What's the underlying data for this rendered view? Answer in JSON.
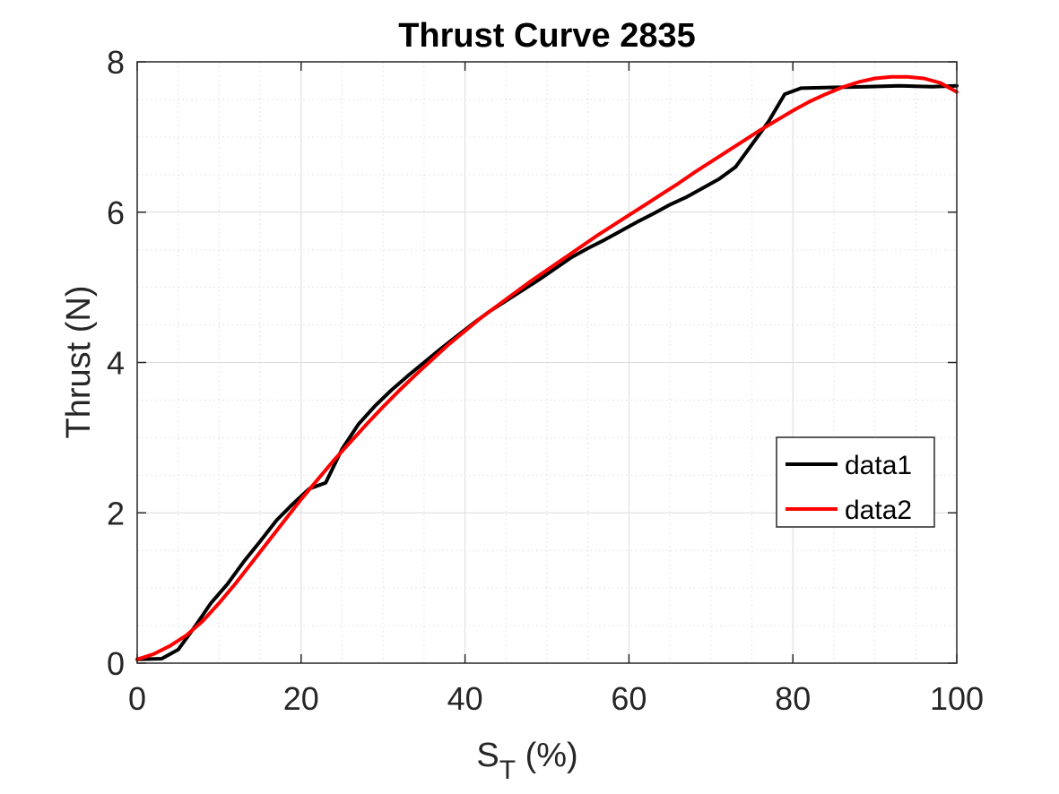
{
  "chart_data": {
    "type": "line",
    "title": "Thrust Curve 2835",
    "xlabel": "S",
    "xlabel_sub": "T",
    "xlabel_suffix": " (%)",
    "ylabel": "Thrust (N)",
    "xlim": [
      0,
      100
    ],
    "ylim": [
      0,
      8
    ],
    "xticks": [
      0,
      20,
      40,
      60,
      80,
      100
    ],
    "yticks": [
      0,
      2,
      4,
      6,
      8
    ],
    "grid": true,
    "minor_grid": true,
    "legend_position": "right",
    "series": [
      {
        "name": "data1",
        "color": "#000000",
        "x": [
          0,
          3,
          5,
          7,
          9,
          11,
          13,
          15,
          17,
          19,
          21,
          23,
          25,
          27,
          29,
          31,
          33,
          35,
          37,
          39,
          41,
          43,
          45,
          47,
          49,
          51,
          53,
          55,
          57,
          59,
          61,
          63,
          65,
          67,
          69,
          71,
          73,
          75,
          77,
          79,
          81,
          85,
          89,
          93,
          97,
          100
        ],
        "y": [
          0.05,
          0.06,
          0.18,
          0.48,
          0.8,
          1.05,
          1.35,
          1.62,
          1.9,
          2.12,
          2.32,
          2.4,
          2.85,
          3.18,
          3.42,
          3.63,
          3.82,
          4.0,
          4.18,
          4.35,
          4.52,
          4.68,
          4.82,
          4.96,
          5.1,
          5.25,
          5.4,
          5.52,
          5.63,
          5.75,
          5.87,
          5.98,
          6.1,
          6.2,
          6.32,
          6.44,
          6.6,
          6.9,
          7.2,
          7.57,
          7.65,
          7.66,
          7.67,
          7.68,
          7.67,
          7.68
        ]
      },
      {
        "name": "data2",
        "color": "#ff0000",
        "x": [
          0,
          2,
          4,
          6,
          8,
          10,
          12,
          14,
          16,
          18,
          20,
          22,
          24,
          26,
          28,
          30,
          32,
          34,
          36,
          38,
          40,
          42,
          44,
          46,
          48,
          50,
          52,
          54,
          56,
          58,
          60,
          62,
          64,
          66,
          68,
          70,
          72,
          74,
          76,
          78,
          80,
          82,
          84,
          86,
          88,
          90,
          92,
          94,
          96,
          98,
          100
        ],
        "y": [
          0.05,
          0.12,
          0.23,
          0.37,
          0.56,
          0.8,
          1.06,
          1.34,
          1.62,
          1.9,
          2.18,
          2.44,
          2.7,
          2.94,
          3.18,
          3.41,
          3.63,
          3.84,
          4.04,
          4.24,
          4.42,
          4.6,
          4.76,
          4.92,
          5.08,
          5.23,
          5.38,
          5.53,
          5.68,
          5.82,
          5.96,
          6.1,
          6.24,
          6.38,
          6.53,
          6.67,
          6.81,
          6.95,
          7.09,
          7.22,
          7.35,
          7.47,
          7.57,
          7.66,
          7.73,
          7.78,
          7.8,
          7.8,
          7.78,
          7.72,
          7.6
        ]
      }
    ]
  }
}
